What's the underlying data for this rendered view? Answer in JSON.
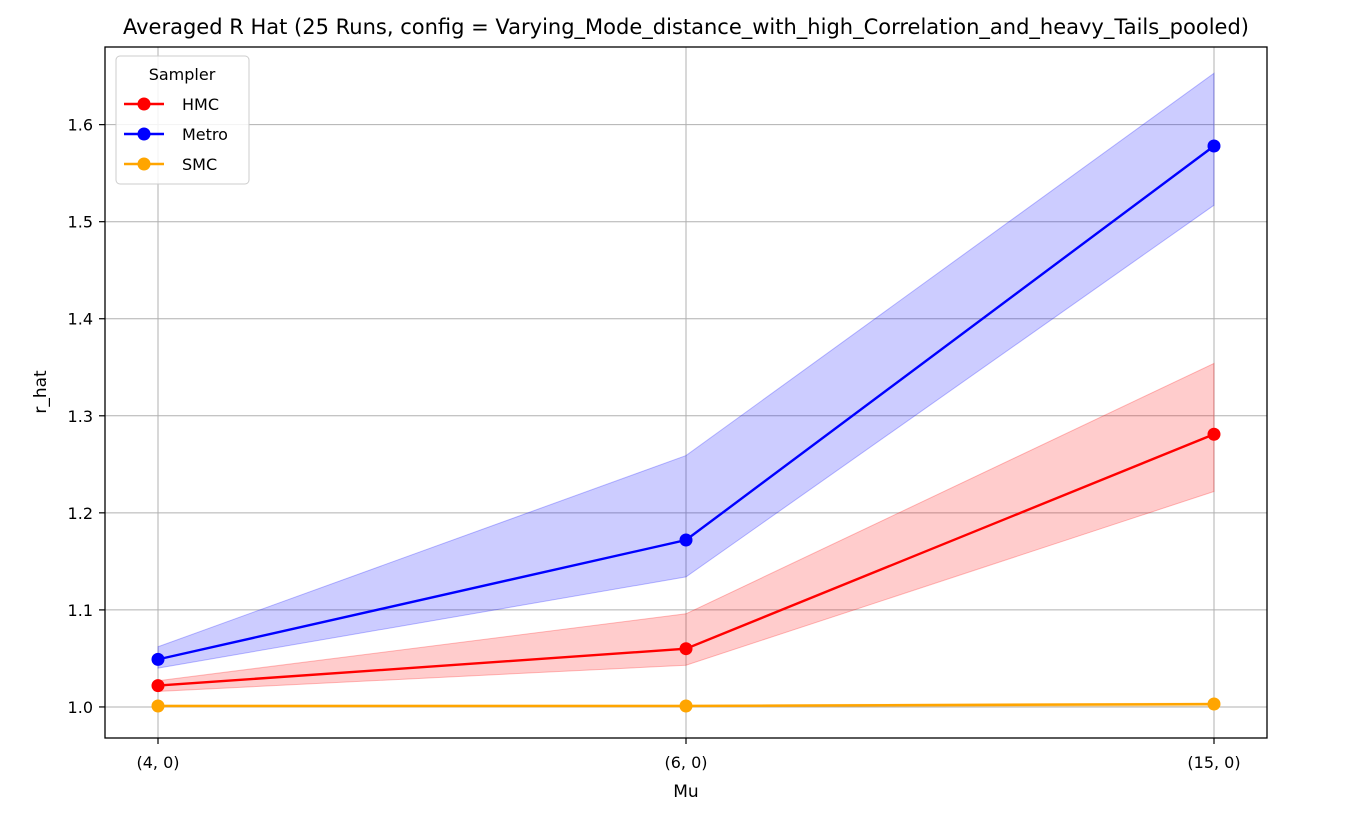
{
  "chart_data": {
    "type": "line",
    "title": "Averaged R Hat (25 Runs, config = Varying_Mode_distance_with_high_Correlation_and_heavy_Tails_pooled)",
    "xlabel": "Mu",
    "ylabel": "r_hat",
    "categories": [
      "(4, 0)",
      "(6, 0)",
      "(15, 0)"
    ],
    "x": [
      4,
      6,
      15
    ],
    "ylim": [
      0.968,
      1.68
    ],
    "yticks": [
      "1.0",
      "1.1",
      "1.2",
      "1.3",
      "1.4",
      "1.5",
      "1.6"
    ],
    "grid": true,
    "legend": {
      "title": "Sampler",
      "placement": "top-left"
    },
    "series": [
      {
        "name": "HMC",
        "color": "#ff0000",
        "values": [
          1.022,
          1.06,
          1.281
        ],
        "lower": [
          1.016,
          1.043,
          1.222
        ],
        "upper": [
          1.027,
          1.096,
          1.354
        ]
      },
      {
        "name": "Metro",
        "color": "#0000ff",
        "values": [
          1.049,
          1.172,
          1.578
        ],
        "lower": [
          1.04,
          1.134,
          1.517
        ],
        "upper": [
          1.062,
          1.259,
          1.653
        ]
      },
      {
        "name": "SMC",
        "color": "#ffa500",
        "values": [
          1.001,
          1.001,
          1.003
        ],
        "lower": [
          1.0,
          1.0,
          1.001
        ],
        "upper": [
          1.002,
          1.002,
          1.004
        ]
      }
    ]
  }
}
